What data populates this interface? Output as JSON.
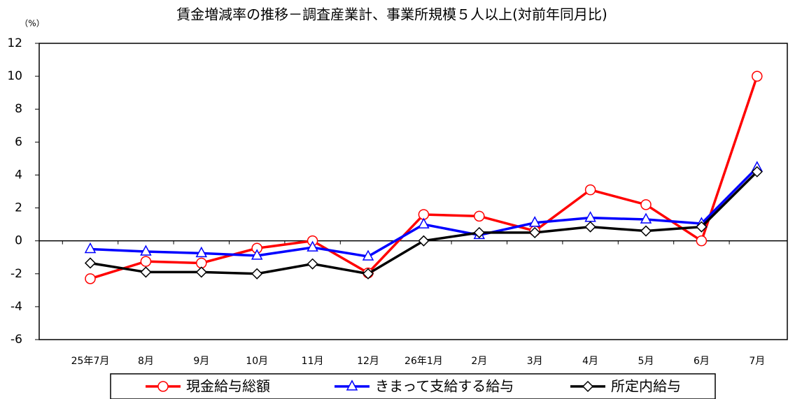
{
  "chart_data": {
    "type": "line",
    "title": "賃金増減率の推移－調査産業計、事業所規模５人以上(対前年同月比)",
    "y_label": "（%）",
    "categories": [
      "25年7月",
      "8月",
      "9月",
      "10月",
      "11月",
      "12月",
      "26年1月",
      "2月",
      "3月",
      "4月",
      "5月",
      "6月",
      "7月"
    ],
    "series": [
      {
        "name": "現金給与総額",
        "color": "#ff0000",
        "marker": "circle",
        "values": [
          -2.3,
          -1.25,
          -1.35,
          -0.45,
          0.0,
          -1.95,
          1.6,
          1.5,
          0.6,
          3.1,
          2.2,
          0.0,
          10.0
        ]
      },
      {
        "name": "きまって支給する給与",
        "color": "#0000ff",
        "marker": "triangle",
        "values": [
          -0.5,
          -0.65,
          -0.75,
          -0.9,
          -0.4,
          -0.95,
          1.0,
          0.35,
          1.1,
          1.4,
          1.3,
          1.05,
          4.45
        ]
      },
      {
        "name": "所定内給与",
        "color": "#000000",
        "marker": "diamond",
        "values": [
          -1.35,
          -1.9,
          -1.9,
          -2.0,
          -1.4,
          -2.0,
          0.0,
          0.5,
          0.5,
          0.85,
          0.6,
          0.85,
          4.2
        ]
      }
    ],
    "ylim": [
      -6,
      12
    ],
    "yticks": [
      -6,
      -4,
      -2,
      0,
      2,
      4,
      6,
      8,
      10,
      12
    ],
    "grid": false,
    "legend": "bottom"
  }
}
